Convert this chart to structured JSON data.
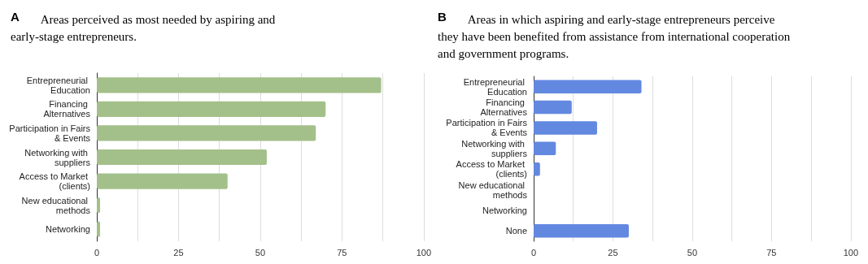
{
  "chart_data": [
    {
      "type": "bar",
      "orientation": "horizontal",
      "title": "A",
      "subtitle": "Areas perceived as most needed by aspiring and early-stage entrepreneurs.",
      "categories": [
        "Entrepreneurial Education",
        "Financing Alternatives",
        "Participation in Fairs & Events",
        "Networking with suppliers",
        "Access to Market (clients)",
        "New educational methods",
        "Networking"
      ],
      "values": [
        87,
        70,
        67,
        52,
        40,
        1,
        1
      ],
      "color": "#a3c08a",
      "xlim": [
        0,
        100
      ],
      "xticks": [
        0,
        {
          "value": 12.5,
          "label": null
        },
        25,
        {
          "value": 37.5,
          "label": null
        },
        50,
        {
          "value": 62.5,
          "label": null
        },
        75,
        {
          "value": 87.5,
          "label": null
        },
        100
      ],
      "grid": "x"
    },
    {
      "type": "bar",
      "orientation": "horizontal",
      "title": "B",
      "subtitle": "Areas in which aspiring and early-stage entrepreneurs perceive they have been benefited from assistance from international cooperation and government programs.",
      "categories": [
        "Entrepreneurial Education",
        "Financing Alternatives",
        "Participation in Fairs & Events",
        "Networking with suppliers",
        "Access to Market (clients)",
        "New educational methods",
        "Networking",
        "None"
      ],
      "values": [
        34,
        12,
        20,
        7,
        2,
        0,
        0,
        30
      ],
      "color": "#6288e0",
      "xlim": [
        0,
        100
      ],
      "xticks": [
        0,
        {
          "value": 12.5,
          "label": null
        },
        25,
        {
          "value": 37.5,
          "label": null
        },
        50,
        {
          "value": 62.5,
          "label": null
        },
        75,
        {
          "value": 87.5,
          "label": null
        },
        100
      ],
      "grid": "x"
    }
  ]
}
